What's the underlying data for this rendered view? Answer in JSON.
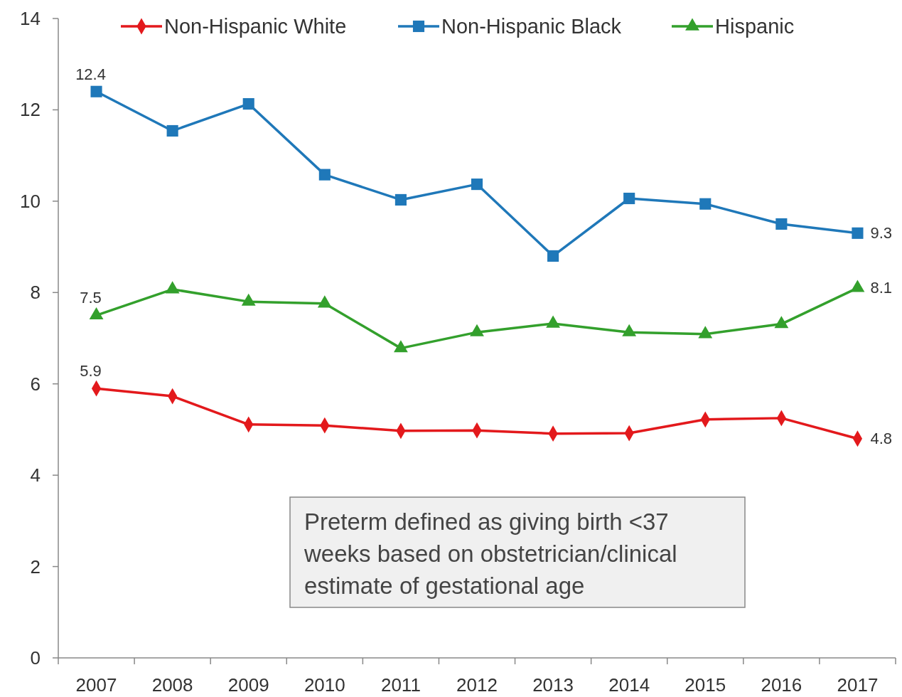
{
  "chart_data": {
    "type": "line",
    "categories": [
      "2007",
      "2008",
      "2009",
      "2010",
      "2011",
      "2012",
      "2013",
      "2014",
      "2015",
      "2016",
      "2017"
    ],
    "series": [
      {
        "name": "Non-Hispanic White",
        "color": "#e3191c",
        "marker": "diamond",
        "values": [
          5.9,
          5.73,
          5.11,
          5.09,
          4.97,
          4.98,
          4.91,
          4.92,
          5.22,
          5.25,
          4.8
        ],
        "value_labels": [
          "5.9",
          null,
          null,
          null,
          null,
          null,
          null,
          null,
          null,
          null,
          "4.8"
        ]
      },
      {
        "name": "Non-Hispanic Black",
        "color": "#1f78b9",
        "marker": "square",
        "values": [
          12.4,
          11.54,
          12.13,
          10.58,
          10.03,
          10.37,
          8.8,
          10.06,
          9.94,
          9.5,
          9.3
        ],
        "value_labels": [
          "12.4",
          null,
          null,
          null,
          null,
          null,
          null,
          null,
          null,
          null,
          "9.3"
        ]
      },
      {
        "name": "Hispanic",
        "color": "#33a02c",
        "marker": "triangle",
        "values": [
          7.5,
          8.07,
          7.8,
          7.76,
          6.78,
          7.13,
          7.32,
          7.13,
          7.09,
          7.31,
          8.1
        ],
        "value_labels": [
          "7.5",
          null,
          null,
          null,
          null,
          null,
          null,
          null,
          null,
          null,
          "8.1"
        ]
      }
    ],
    "ylim": [
      0,
      14
    ],
    "yticks": [
      0,
      2,
      4,
      6,
      8,
      10,
      12,
      14
    ],
    "grid": false,
    "legend": "top",
    "annotations": [
      "Preterm defined as giving birth <37 weeks based on obstetrician/clinical estimate of gestational age"
    ]
  }
}
